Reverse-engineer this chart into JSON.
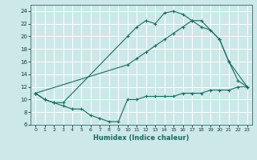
{
  "xlabel": "Humidex (Indice chaleur)",
  "bg_color": "#cce8e8",
  "grid_color": "#ffffff",
  "line_color": "#1a6b60",
  "xlim": [
    -0.5,
    23.5
  ],
  "ylim": [
    6,
    25
  ],
  "xticks": [
    0,
    1,
    2,
    3,
    4,
    5,
    6,
    7,
    8,
    9,
    10,
    11,
    12,
    13,
    14,
    15,
    16,
    17,
    18,
    19,
    20,
    21,
    22,
    23
  ],
  "yticks": [
    6,
    8,
    10,
    12,
    14,
    16,
    18,
    20,
    22,
    24
  ],
  "line1_x": [
    0,
    1,
    2,
    3,
    10,
    11,
    12,
    13,
    14,
    15,
    16,
    17,
    18,
    20,
    21,
    23
  ],
  "line1_y": [
    11,
    10,
    9.5,
    9.5,
    20,
    21.5,
    22.5,
    22,
    23.7,
    24,
    23.5,
    22.5,
    22.5,
    19.5,
    16,
    12
  ],
  "line2_x": [
    0,
    10,
    11,
    12,
    13,
    14,
    15,
    16,
    17,
    18,
    19,
    20,
    21,
    22,
    23
  ],
  "line2_y": [
    11,
    15.5,
    16.5,
    17.5,
    18.5,
    19.5,
    20.5,
    21.5,
    22.5,
    21.5,
    21,
    19.5,
    16,
    13,
    12
  ],
  "line3_x": [
    0,
    1,
    2,
    3,
    4,
    5,
    6,
    7,
    8,
    9,
    10,
    11,
    12,
    13,
    14,
    15,
    16,
    17,
    18,
    19,
    20,
    21,
    22,
    23
  ],
  "line3_y": [
    11,
    10,
    9.5,
    9,
    8.5,
    8.5,
    7.5,
    7,
    6.5,
    6.5,
    10,
    10,
    10.5,
    10.5,
    10.5,
    10.5,
    11,
    11,
    11,
    11.5,
    11.5,
    11.5,
    12,
    12
  ]
}
